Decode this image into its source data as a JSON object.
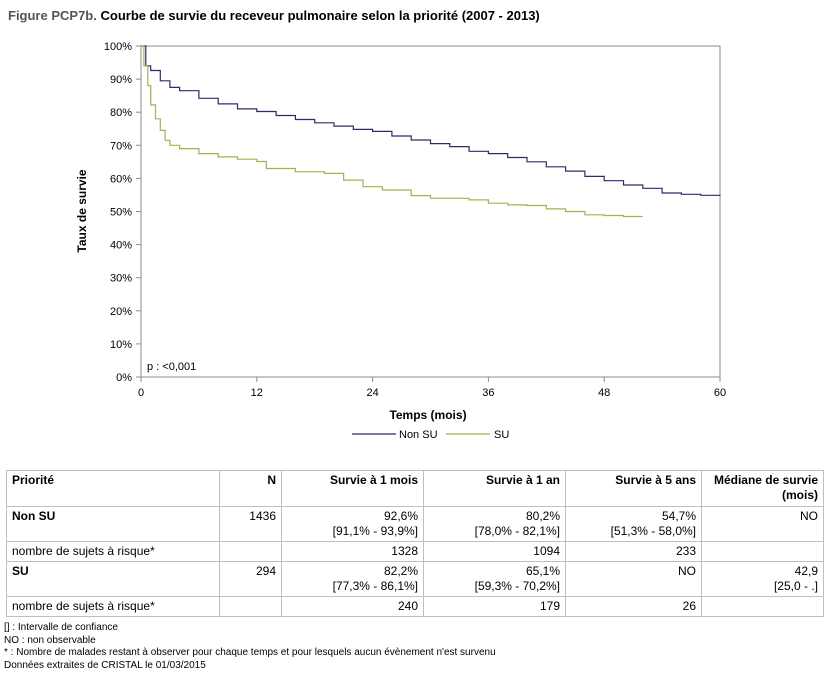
{
  "figure": {
    "label": "Figure PCP7b.",
    "title": "Courbe de survie du receveur pulmonaire selon la priorité (2007 - 2013)"
  },
  "chart_data": {
    "type": "line",
    "xlabel": "Temps (mois)",
    "ylabel": "Taux de survie",
    "xlim": [
      0,
      60
    ],
    "ylim": [
      0,
      100
    ],
    "xticks": [
      "0",
      "12",
      "24",
      "36",
      "48",
      "60"
    ],
    "yticks": [
      "0%",
      "10%",
      "20%",
      "30%",
      "40%",
      "50%",
      "60%",
      "70%",
      "80%",
      "90%",
      "100%"
    ],
    "annotation": "p : <0,001",
    "legend_position": "bottom",
    "series": [
      {
        "name": "Non SU",
        "color": "#2e2a6e",
        "x": [
          0,
          0.5,
          1,
          2,
          3,
          4,
          6,
          8,
          10,
          12,
          14,
          16,
          18,
          20,
          22,
          24,
          26,
          28,
          30,
          32,
          34,
          36,
          38,
          40,
          42,
          44,
          46,
          48,
          50,
          52,
          54,
          56,
          58,
          60
        ],
        "y": [
          100,
          94,
          92.6,
          89.5,
          87.5,
          86.5,
          84.2,
          82.5,
          81,
          80.2,
          79,
          77.8,
          76.8,
          75.8,
          74.8,
          74.2,
          72.8,
          71.6,
          70.5,
          69.6,
          68.2,
          67.5,
          66.3,
          65,
          63.5,
          62.2,
          60.6,
          59.3,
          58,
          57,
          55.6,
          55.2,
          54.9,
          54.7
        ]
      },
      {
        "name": "SU",
        "color": "#9cb54c",
        "x": [
          0,
          0.3,
          0.7,
          1,
          1.5,
          2,
          2.5,
          3,
          4,
          6,
          8,
          10,
          12,
          13,
          16,
          19,
          21,
          23,
          25,
          28,
          30,
          32,
          34,
          36,
          38,
          40,
          42,
          44,
          46,
          48,
          50,
          52
        ],
        "y": [
          100,
          94,
          88,
          82.2,
          78,
          74.5,
          71.5,
          70,
          69,
          67.5,
          66.5,
          65.8,
          65.1,
          63,
          62,
          61.5,
          59.5,
          57.5,
          56.5,
          54.8,
          54,
          54,
          53.5,
          52.5,
          52,
          51.8,
          50.8,
          50,
          49,
          48.8,
          48.5,
          48.5
        ]
      }
    ]
  },
  "table": {
    "headers": [
      "Priorité",
      "N",
      "Survie à 1 mois",
      "Survie à 1 an",
      "Survie à 5 ans",
      "Médiane de survie (mois)"
    ],
    "groups": [
      {
        "name": "Non SU",
        "n": "1436",
        "m1": "92,6%",
        "m1_ci": "[91,1% - 93,9%]",
        "y1": "80,2%",
        "y1_ci": "[78,0% - 82,1%]",
        "y5": "54,7%",
        "y5_ci": "[51,3% - 58,0%]",
        "median": "NO",
        "median_ci": "",
        "risk_label": "nombre de sujets à risque*",
        "risk": [
          "1328",
          "1094",
          "233"
        ]
      },
      {
        "name": "SU",
        "n": "294",
        "m1": "82,2%",
        "m1_ci": "[77,3% - 86,1%]",
        "y1": "65,1%",
        "y1_ci": "[59,3% - 70,2%]",
        "y5": "NO",
        "y5_ci": "",
        "median": "42,9",
        "median_ci": "[25,0 - .]",
        "risk_label": "nombre de sujets à risque*",
        "risk": [
          "240",
          "179",
          "26"
        ]
      }
    ]
  },
  "notes": [
    "[] : Intervalle de confiance",
    "NO : non observable",
    "* : Nombre de malades restant à observer pour chaque temps et pour lesquels aucun évènement n'est survenu",
    "Données extraites de CRISTAL le 01/03/2015"
  ]
}
